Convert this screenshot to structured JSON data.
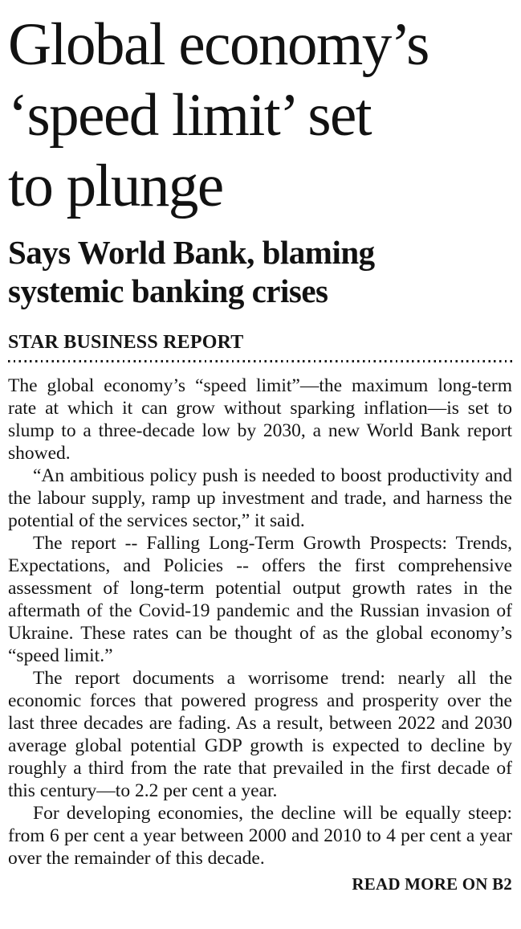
{
  "article": {
    "headline_lines": [
      "Global economy’s",
      "‘speed limit’ set",
      "to plunge"
    ],
    "subhead_lines": [
      "Says World Bank, blaming",
      "systemic banking crises"
    ],
    "byline": "STAR BUSINESS REPORT",
    "paragraphs": [
      "The global economy’s “speed limit”—the maximum long-term rate at which it can grow without sparking inflation—is set to slump to a three-decade low by 2030, a new World Bank report showed.",
      "“An ambitious policy push is needed to boost productivity and the labour supply, ramp up investment and trade, and harness the potential of the services sector,” it said.",
      "The report -- Falling Long-Term Growth Prospects: Trends, Expectations, and Policies -- offers the first comprehensive assessment of long-term potential output growth rates in the aftermath of the Covid-19 pandemic and the Russian invasion of Ukraine. These rates can be thought of as the global economy’s “speed limit.”",
      "The report documents a worrisome trend: nearly all the economic forces that powered progress and prosperity over the last three decades are fading. As a result, between 2022 and 2030 average global potential GDP growth is expected to decline by roughly a third from the rate that prevailed in the first decade of this century—to 2.2 per cent a year.",
      "For developing economies, the decline will be equally steep: from 6 per cent a year between 2000 and 2010 to 4 per cent a year over the remainder of this decade."
    ],
    "read_more": "READ MORE ON B2"
  },
  "colors": {
    "text": "#131313",
    "background": "#ffffff"
  }
}
